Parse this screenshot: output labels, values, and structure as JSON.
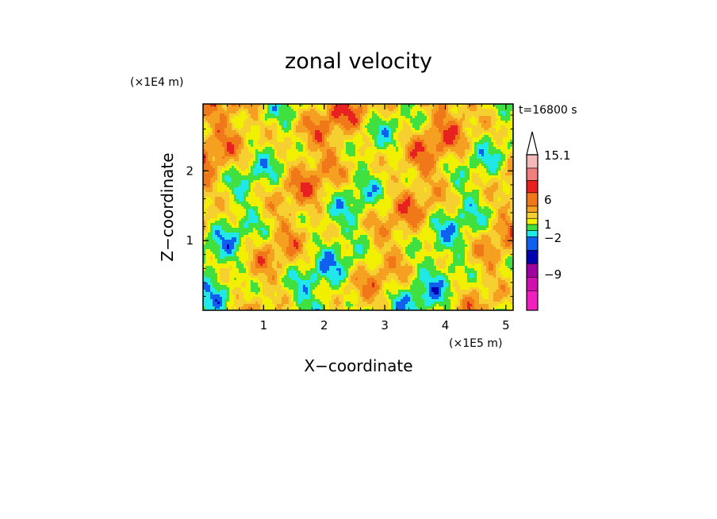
{
  "chart_data": {
    "type": "heatmap",
    "title": "zonal velocity",
    "xlabel": "X−coordinate",
    "ylabel": "Z−coordinate",
    "x_unit": "(×1E5 m)",
    "y_unit": "(×1E4 m)",
    "time_label": "t=16800 s",
    "xlim": [
      0,
      5.12
    ],
    "ylim": [
      0,
      2.96
    ],
    "x_ticks": [
      1,
      2,
      3,
      4,
      5
    ],
    "x_tick_labels": [
      "1",
      "2",
      "3",
      "4",
      "5"
    ],
    "y_ticks": [
      1,
      2
    ],
    "y_tick_labels": [
      "1",
      "2"
    ],
    "colorbar": {
      "levels": [
        "15.1",
        "6",
        "1",
        "−2",
        "−9"
      ],
      "colors_top_to_bottom": [
        "#f5b8b8",
        "#f08080",
        "#e82020",
        "#f07818",
        "#f5a020",
        "#f5d030",
        "#f0f000",
        "#40e040",
        "#20e8e8",
        "#1060f0",
        "#0000b0",
        "#a000a0",
        "#d010b0",
        "#f020c0"
      ]
    },
    "value_colors": [
      "#0000b0",
      "#1060f0",
      "#20e8e8",
      "#40e040",
      "#f0f000",
      "#f5d030",
      "#f5a020",
      "#f07818",
      "#e82020"
    ]
  }
}
